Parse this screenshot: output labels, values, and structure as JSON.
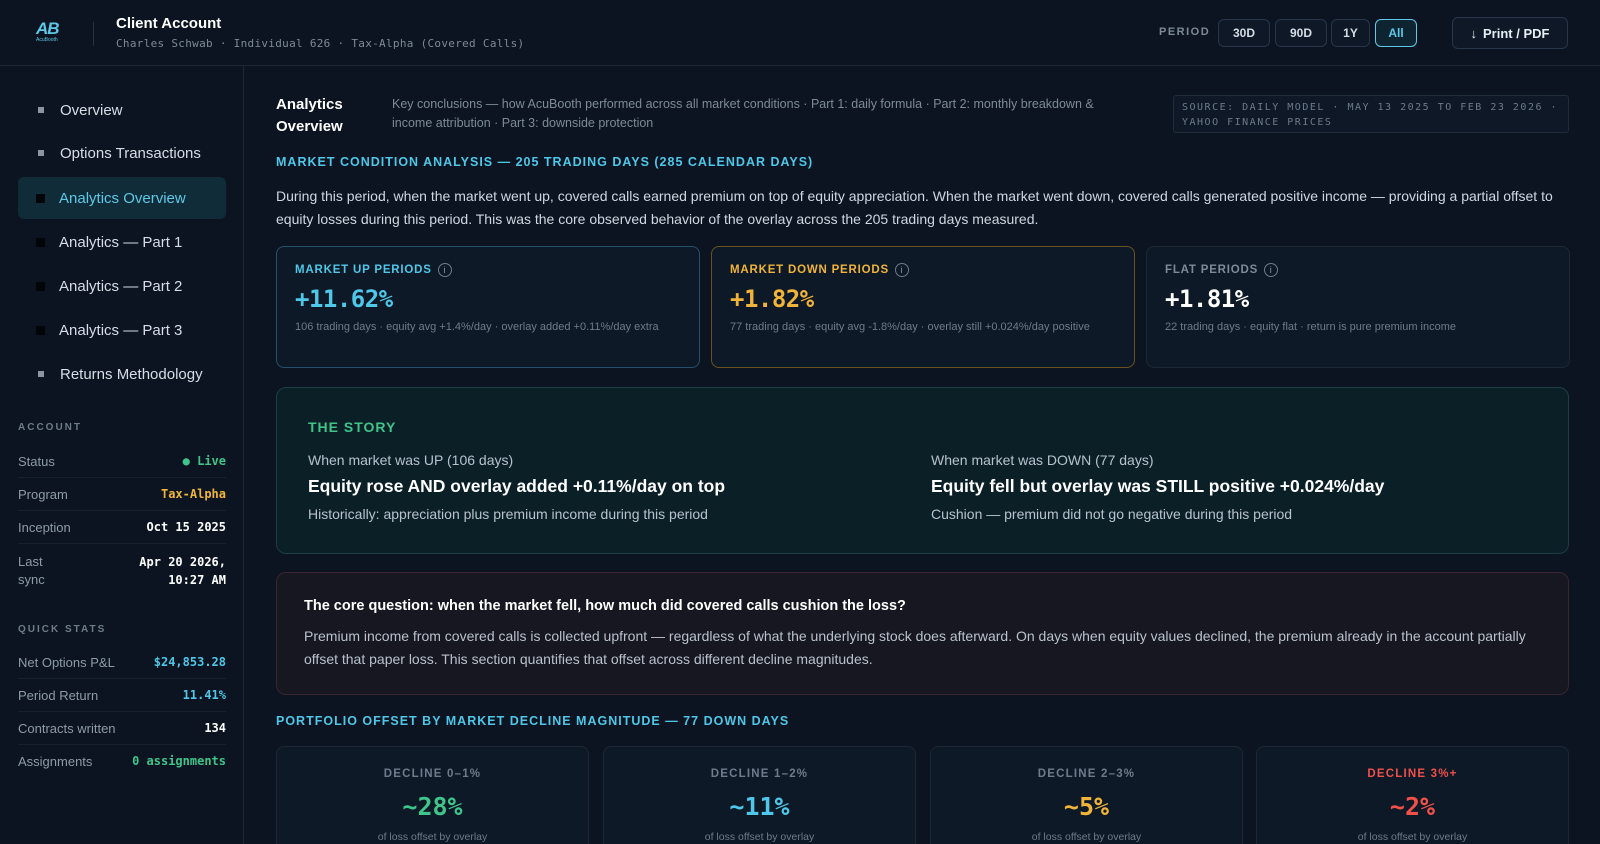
{
  "header": {
    "logo_text": "AB",
    "logo_sub": "AcuBooth",
    "title": "Client Account",
    "subtitle": "Charles Schwab · Individual 626 · Tax-Alpha (Covered Calls)",
    "period_label": "PERIOD",
    "periods": [
      "30D",
      "90D",
      "1Y",
      "All"
    ],
    "active_period": "All",
    "print_label": "Print / PDF"
  },
  "sidebar": {
    "items": [
      {
        "label": "Overview"
      },
      {
        "label": "Options Transactions"
      },
      {
        "label": "Analytics Overview"
      },
      {
        "label": "Analytics — Part 1"
      },
      {
        "label": "Analytics — Part 2"
      },
      {
        "label": "Analytics — Part 3"
      },
      {
        "label": "Returns Methodology"
      }
    ],
    "account_label": "ACCOUNT",
    "account": [
      {
        "k": "Status",
        "v": "● Live"
      },
      {
        "k": "Program",
        "v": "Tax-Alpha"
      },
      {
        "k": "Inception",
        "v": "Oct 15 2025"
      },
      {
        "k": "Last sync",
        "v": "Apr 20 2026, 10:27 AM"
      }
    ],
    "quick_label": "QUICK STATS",
    "quick": [
      {
        "k": "Net Options P&L",
        "v": "$24,853.28"
      },
      {
        "k": "Period Return",
        "v": "11.41%"
      },
      {
        "k": "Contracts written",
        "v": "134"
      },
      {
        "k": "Assignments",
        "v": "0 assignments"
      }
    ]
  },
  "main": {
    "title": "Analytics Overview",
    "description": "Key conclusions — how AcuBooth performed across all market conditions · Part 1: daily formula · Part 2: monthly breakdown & income attribution · Part 3: downside protection",
    "source": "SOURCE: DAILY MODEL · MAY 13 2025 TO FEB 23 2026 · YAHOO FINANCE PRICES",
    "section1": "MARKET CONDITION ANALYSIS — 205 TRADING DAYS (285 CALENDAR DAYS)",
    "intro": "During this period, when the market went up, covered calls earned premium on top of equity appreciation. When the market went down, covered calls generated positive income — providing a partial offset to equity losses during this period. This was the core observed behavior of the overlay across the 205 trading days measured.",
    "cards": [
      {
        "label": "MARKET UP PERIODS",
        "value": "+11.62%",
        "note": "106 trading days · equity avg +1.4%/day · overlay added +0.11%/day extra"
      },
      {
        "label": "MARKET DOWN PERIODS",
        "value": "+1.82%",
        "note": "77 trading days · equity avg -1.8%/day · overlay still +0.024%/day positive"
      },
      {
        "label": "FLAT PERIODS",
        "value": "+1.81%",
        "note": "22 trading days · equity flat · return is pure premium income"
      }
    ],
    "story": {
      "title": "THE STORY",
      "left": {
        "cap": "When market was UP (106 days)",
        "big": "Equity rose AND overlay added +0.11%/day on top",
        "sm": "Historically: appreciation plus premium income during this period"
      },
      "right": {
        "cap": "When market was DOWN (77 days)",
        "big": "Equity fell but overlay was STILL positive +0.024%/day",
        "sm": "Cushion — premium did not go negative during this period"
      }
    },
    "question": {
      "q": "The core question: when the market fell, how much did covered calls cushion the loss?",
      "a": "Premium income from covered calls is collected upfront — regardless of what the underlying stock does afterward. On days when equity values declined, the premium already in the account partially offset that paper loss. This section quantifies that offset across different decline magnitudes."
    },
    "section2": "PORTFOLIO OFFSET BY MARKET DECLINE MAGNITUDE — 77 DOWN DAYS",
    "declines": [
      {
        "label": "DECLINE 0–1%",
        "value": "~28%",
        "note": "of loss offset by overlay"
      },
      {
        "label": "DECLINE 1–2%",
        "value": "~11%",
        "note": "of loss offset by overlay"
      },
      {
        "label": "DECLINE 2–3%",
        "value": "~5%",
        "note": "of loss offset by overlay"
      },
      {
        "label": "DECLINE 3%+",
        "value": "~2%",
        "note": "of loss offset by overlay"
      }
    ]
  },
  "colors": {
    "accent": "#4ec7e8",
    "up": "#4ec7e8",
    "down": "#f0b43a",
    "green": "#3fc48a",
    "red": "#f0504a"
  }
}
